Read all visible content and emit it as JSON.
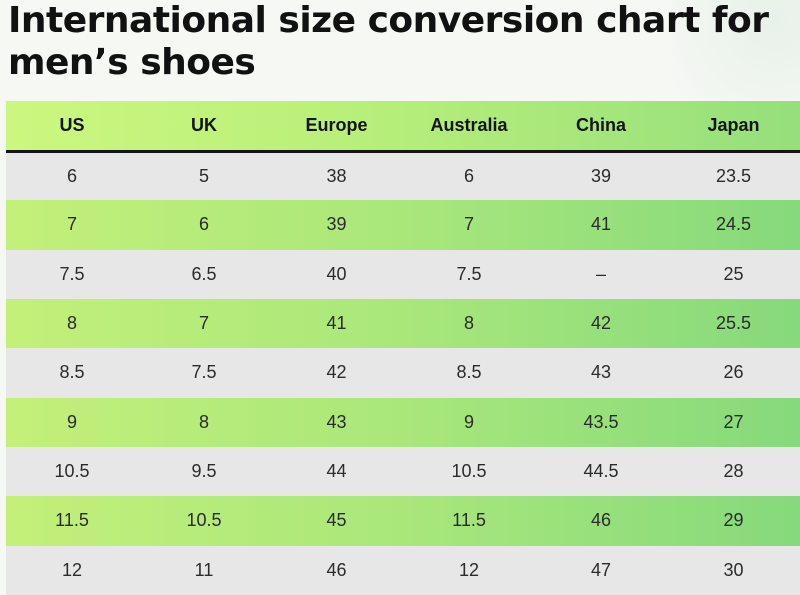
{
  "title": "International size conversion chart for men’s shoes",
  "table": {
    "headers": [
      "US",
      "UK",
      "Europe",
      "Australia",
      "China",
      "Japan"
    ],
    "rows": [
      [
        "6",
        "5",
        "38",
        "6",
        "39",
        "23.5"
      ],
      [
        "7",
        "6",
        "39",
        "7",
        "41",
        "24.5"
      ],
      [
        "7.5",
        "6.5",
        "40",
        "7.5",
        "–",
        "25"
      ],
      [
        "8",
        "7",
        "41",
        "8",
        "42",
        "25.5"
      ],
      [
        "8.5",
        "7.5",
        "42",
        "8.5",
        "43",
        "26"
      ],
      [
        "9",
        "8",
        "43",
        "9",
        "43.5",
        "27"
      ],
      [
        "10.5",
        "9.5",
        "44",
        "10.5",
        "44.5",
        "28"
      ],
      [
        "11.5",
        "10.5",
        "45",
        "11.5",
        "46",
        "29"
      ],
      [
        "12",
        "11",
        "46",
        "12",
        "47",
        "30"
      ]
    ]
  },
  "colors": {
    "header_gradient_start": "#ccf77f",
    "header_gradient_end": "#95df7c",
    "row_gray": "#e7e7e7",
    "row_green_start": "#c3f079",
    "row_green_end": "#86d97c",
    "header_rule": "#151515",
    "text": "#2b2b2b"
  }
}
